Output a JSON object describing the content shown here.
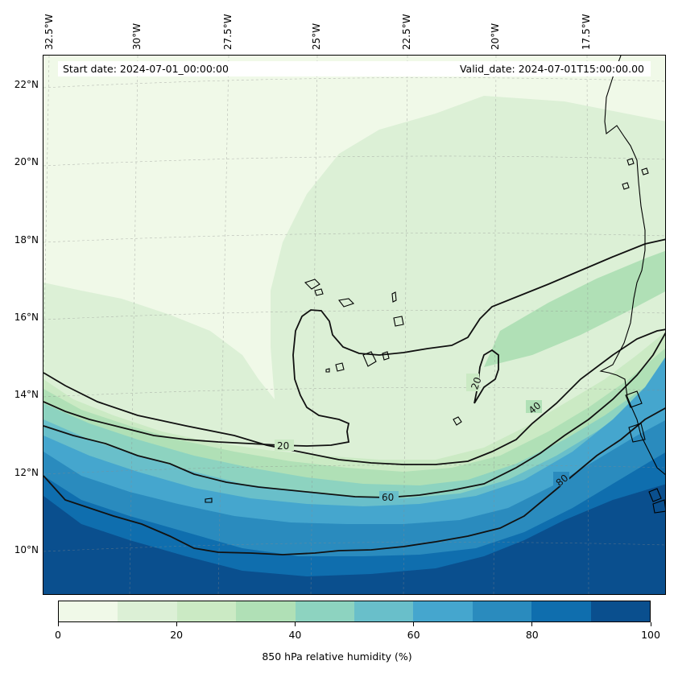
{
  "map": {
    "lon_labels": [
      "32.5°W",
      "30°W",
      "27.5°W",
      "25°W",
      "22.5°W",
      "20°W",
      "17.5°W"
    ],
    "lat_labels": [
      "22°N",
      "20°N",
      "18°N",
      "16°N",
      "14°N",
      "12°N",
      "10°N"
    ],
    "start_date": "Start date: 2024-07-01_00:00:00",
    "valid_date": "Valid_date: 2024-07-01T15:00:00.00",
    "contour_labels": [
      "20",
      "20",
      "40",
      "60",
      "80"
    ],
    "field": "850 hPa relative humidity",
    "gridlines": true
  },
  "colorbar": {
    "title": "850 hPa relative humidity (%)",
    "ticks": [
      "0",
      "20",
      "40",
      "60",
      "80",
      "100"
    ],
    "levels": [
      0,
      10,
      20,
      30,
      40,
      50,
      60,
      70,
      80,
      90,
      100
    ],
    "colors": [
      "#f0f9e8",
      "#dcf0d6",
      "#cbeac4",
      "#b0e0b6",
      "#8dd3c0",
      "#69bfca",
      "#45a6ce",
      "#2a8bbe",
      "#0f6eae",
      "#0a4f8e"
    ]
  }
}
